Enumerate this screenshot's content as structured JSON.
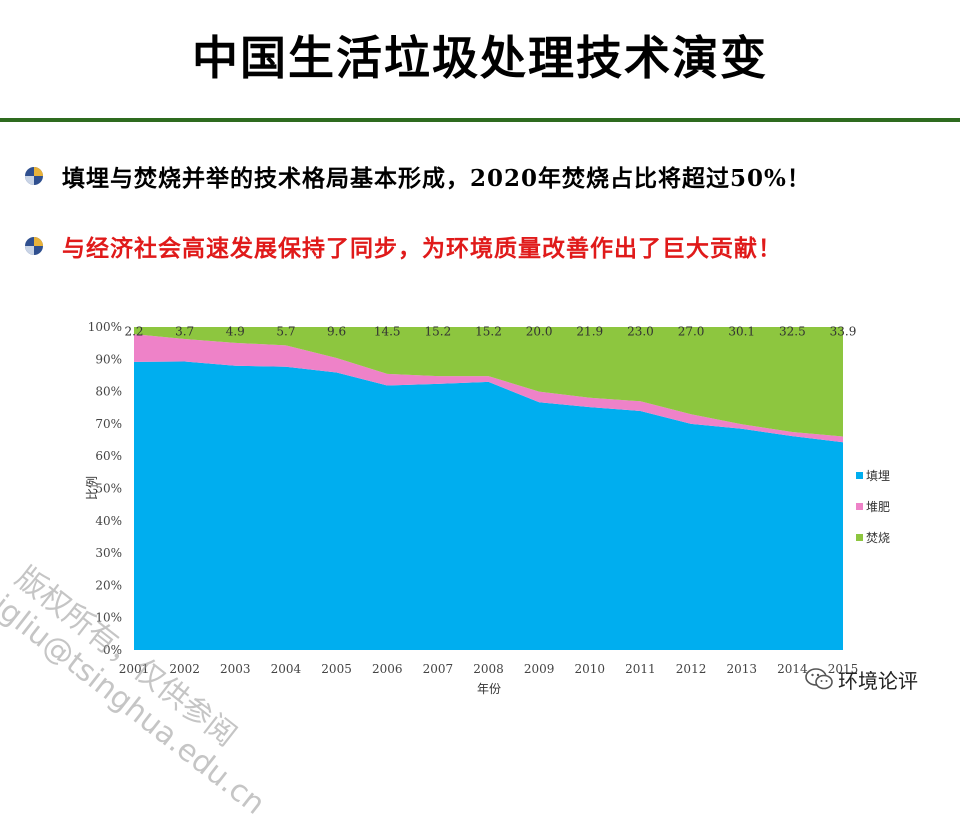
{
  "slide": {
    "title": "中国生活垃圾处理技术演变",
    "bullets": [
      "填埋与焚烧并举的技术格局基本形成，2020年焚烧占比将超过50%！",
      "与经济社会高速发展保持了同步，为环境质量改善作出了巨大贡献！"
    ],
    "watermark_lines": [
      "版权所有，仅供参阅",
      "jgliu@tsinghua.edu.cn"
    ],
    "wechat_label": "环境论评"
  },
  "colors": {
    "title_rule": "#2e6b1f",
    "bullet2_text": "#e01a1a",
    "landfill": "#00aeef",
    "compost": "#ee82c8",
    "incineration": "#8dc63f"
  },
  "chart_data": {
    "type": "area",
    "stacked": true,
    "percent_stacked": true,
    "x": [
      "2001",
      "2002",
      "2003",
      "2004",
      "2005",
      "2006",
      "2007",
      "2008",
      "2009",
      "2010",
      "2011",
      "2012",
      "2013",
      "2014",
      "2015"
    ],
    "series": [
      {
        "name": "填埋",
        "color": "#00aeef",
        "values": [
          89.2,
          89.3,
          88.0,
          87.7,
          85.9,
          81.9,
          82.4,
          83.0,
          76.7,
          75.2,
          74.0,
          70.0,
          68.5,
          66.2,
          64.3
        ]
      },
      {
        "name": "堆肥",
        "color": "#ee82c8",
        "values": [
          8.6,
          7.0,
          7.1,
          6.6,
          4.5,
          3.6,
          2.4,
          1.8,
          3.3,
          2.9,
          3.0,
          3.0,
          1.4,
          1.3,
          1.8
        ]
      },
      {
        "name": "焚烧",
        "color": "#8dc63f",
        "values": [
          2.2,
          3.7,
          4.9,
          5.7,
          9.6,
          14.5,
          15.2,
          15.2,
          20.0,
          21.9,
          23.0,
          27.0,
          30.1,
          32.5,
          33.9
        ]
      }
    ],
    "data_labels": [
      "2.2",
      "3.7",
      "4.9",
      "5.7",
      "9.6",
      "14.5",
      "15.2",
      "15.2",
      "20.0",
      "21.9",
      "23.0",
      "27.0",
      "30.1",
      "32.5",
      "33.9"
    ],
    "y_ticks": [
      "0%",
      "10%",
      "20%",
      "30%",
      "40%",
      "50%",
      "60%",
      "70%",
      "80%",
      "90%",
      "100%"
    ],
    "ylim": [
      0,
      100
    ],
    "xlabel": "年份",
    "ylabel": "比例",
    "legend": "right",
    "grid": false
  }
}
